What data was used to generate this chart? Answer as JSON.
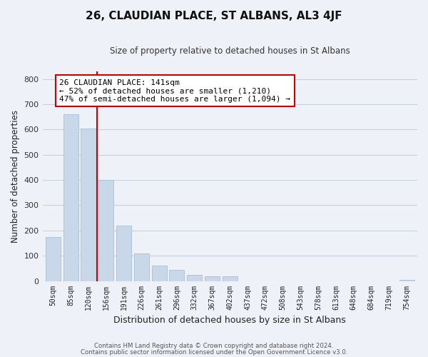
{
  "title": "26, CLAUDIAN PLACE, ST ALBANS, AL3 4JF",
  "subtitle": "Size of property relative to detached houses in St Albans",
  "xlabel": "Distribution of detached houses by size in St Albans",
  "ylabel": "Number of detached properties",
  "bar_labels": [
    "50sqm",
    "85sqm",
    "120sqm",
    "156sqm",
    "191sqm",
    "226sqm",
    "261sqm",
    "296sqm",
    "332sqm",
    "367sqm",
    "402sqm",
    "437sqm",
    "472sqm",
    "508sqm",
    "543sqm",
    "578sqm",
    "613sqm",
    "648sqm",
    "684sqm",
    "719sqm",
    "754sqm"
  ],
  "bar_values": [
    175,
    660,
    605,
    400,
    220,
    110,
    60,
    45,
    25,
    18,
    18,
    0,
    0,
    0,
    0,
    0,
    0,
    0,
    0,
    0,
    5
  ],
  "bar_color": "#c8d8e8",
  "bar_edge_color": "#a8c0d8",
  "vline_x": 2.5,
  "vline_color": "#cc0000",
  "annotation_line1": "26 CLAUDIAN PLACE: 141sqm",
  "annotation_line2": "← 52% of detached houses are smaller (1,210)",
  "annotation_line3": "47% of semi-detached houses are larger (1,094) →",
  "annotation_box_color": "#ffffff",
  "annotation_box_edge": "#cc0000",
  "ylim": [
    0,
    830
  ],
  "yticks": [
    0,
    100,
    200,
    300,
    400,
    500,
    600,
    700,
    800
  ],
  "background_color": "#eef2f8",
  "grid_color": "#c8d0dc",
  "footer_line1": "Contains HM Land Registry data © Crown copyright and database right 2024.",
  "footer_line2": "Contains public sector information licensed under the Open Government Licence v3.0."
}
